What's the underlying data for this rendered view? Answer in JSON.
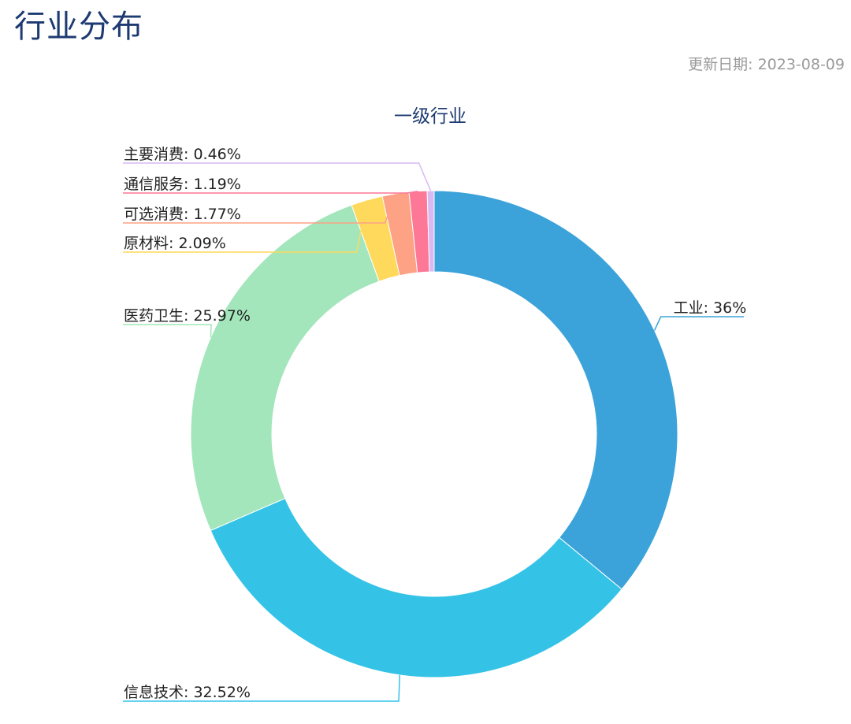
{
  "page": {
    "title": "行业分布",
    "update_date": "更新日期: 2023-08-09"
  },
  "chart_data": {
    "type": "pie",
    "title": "一级行业",
    "donut": true,
    "legend": "none",
    "labels_format": "{name}: {pct}",
    "slices": [
      {
        "name": "工业",
        "value": 36,
        "label": "工业: 36%",
        "color": "#3ba3d9"
      },
      {
        "name": "信息技术",
        "value": 32.52,
        "label": "信息技术: 32.52%",
        "color": "#34c3e7"
      },
      {
        "name": "医药卫生",
        "value": 25.97,
        "label": "医药卫生: 25.97%",
        "color": "#a3e6bb"
      },
      {
        "name": "原材料",
        "value": 2.09,
        "label": "原材料: 2.09%",
        "color": "#fed95c"
      },
      {
        "name": "可选消费",
        "value": 1.77,
        "label": "可选消费: 1.77%",
        "color": "#fda284"
      },
      {
        "name": "通信服务",
        "value": 1.19,
        "label": "通信服务: 1.19%",
        "color": "#fd7796"
      },
      {
        "name": "主要消费",
        "value": 0.46,
        "label": "主要消费: 0.46%",
        "color": "#d9b9f2"
      }
    ]
  }
}
